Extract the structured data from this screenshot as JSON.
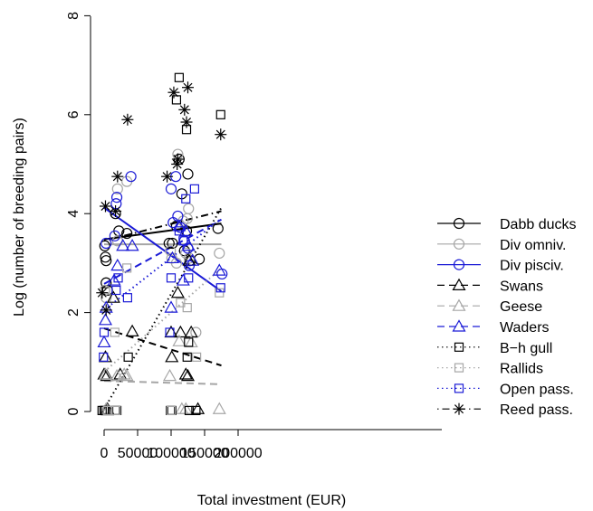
{
  "chart_data": {
    "type": "scatter",
    "xlabel": "Total investment (EUR)",
    "ylabel": "Log (number of breeding pairs)",
    "xlim": [
      -10000,
      200000
    ],
    "ylim": [
      0,
      8
    ],
    "x_ticks": [
      0,
      50000,
      100000,
      150000,
      200000
    ],
    "x_tick_labels": [
      "0",
      "50000",
      "100000",
      "150000",
      "200000"
    ],
    "y_ticks": [
      0,
      2,
      4,
      6,
      8
    ],
    "y_tick_labels": [
      "0",
      "2",
      "4",
      "6",
      "8"
    ],
    "legend_position": "right",
    "colors": {
      "black": "#000000",
      "grey": "#a6a6a6",
      "blue": "#1a1ad6"
    },
    "series": [
      {
        "name": "Dabb ducks",
        "marker": "circle",
        "color": "black",
        "line": "solid",
        "fit": [
          [
            0,
            3.48
          ],
          [
            175000,
            3.8
          ]
        ],
        "points": [
          [
            1000,
            3.35
          ],
          [
            2000,
            3.12
          ],
          [
            3000,
            3.05
          ],
          [
            3000,
            2.6
          ],
          [
            5000,
            2.45
          ],
          [
            17000,
            4.0
          ],
          [
            22000,
            3.65
          ],
          [
            34000,
            3.6
          ],
          [
            97000,
            3.4
          ],
          [
            102000,
            3.4
          ],
          [
            108000,
            3.75
          ],
          [
            112000,
            5.1
          ],
          [
            116000,
            4.4
          ],
          [
            120000,
            3.25
          ],
          [
            123000,
            3.65
          ],
          [
            125000,
            4.8
          ],
          [
            128000,
            3.05
          ],
          [
            142000,
            3.08
          ],
          [
            170000,
            3.7
          ]
        ]
      },
      {
        "name": "Div omniv.",
        "marker": "circle",
        "color": "grey",
        "line": "solid",
        "fit": [
          [
            0,
            3.38
          ],
          [
            175000,
            3.38
          ]
        ],
        "points": [
          [
            1000,
            2.45
          ],
          [
            3000,
            2.3
          ],
          [
            20000,
            3.45
          ],
          [
            20000,
            4.5
          ],
          [
            34000,
            4.65
          ],
          [
            99000,
            3.25
          ],
          [
            101000,
            3.1
          ],
          [
            108000,
            3.0
          ],
          [
            110000,
            5.2
          ],
          [
            118000,
            3.85
          ],
          [
            122000,
            3.2
          ],
          [
            124000,
            3.9
          ],
          [
            126000,
            4.1
          ],
          [
            127000,
            3.1
          ],
          [
            137000,
            1.6
          ],
          [
            172000,
            3.2
          ]
        ]
      },
      {
        "name": "Div pisciv.",
        "marker": "circle",
        "color": "blue",
        "line": "solid",
        "fit": [
          [
            0,
            4.12
          ],
          [
            175000,
            2.43
          ]
        ],
        "points": [
          [
            3000,
            3.4
          ],
          [
            16000,
            3.55
          ],
          [
            18000,
            4.2
          ],
          [
            19000,
            4.33
          ],
          [
            40000,
            4.75
          ],
          [
            100000,
            4.5
          ],
          [
            103000,
            3.82
          ],
          [
            107000,
            4.75
          ],
          [
            110000,
            3.95
          ],
          [
            114000,
            3.72
          ],
          [
            120000,
            3.45
          ],
          [
            125000,
            3.3
          ],
          [
            127000,
            2.95
          ],
          [
            176000,
            2.78
          ]
        ]
      },
      {
        "name": "Swans",
        "marker": "triangle",
        "color": "black",
        "line": "dashed",
        "fit": [
          [
            0,
            1.68
          ],
          [
            175000,
            0.93
          ]
        ],
        "points": [
          [
            0,
            0.75
          ],
          [
            2000,
            1.1
          ],
          [
            4000,
            0.72
          ],
          [
            5000,
            0.05
          ],
          [
            14000,
            2.3
          ],
          [
            24000,
            0.75
          ],
          [
            42000,
            1.62
          ],
          [
            100000,
            1.6
          ],
          [
            101000,
            1.1
          ],
          [
            110000,
            2.4
          ],
          [
            114000,
            1.6
          ],
          [
            122000,
            0.75
          ],
          [
            125000,
            0.72
          ],
          [
            127000,
            3.05
          ],
          [
            130000,
            1.6
          ],
          [
            140000,
            0.05
          ]
        ]
      },
      {
        "name": "Geese",
        "marker": "triangle",
        "color": "grey",
        "line": "dashed",
        "fit": [
          [
            0,
            0.62
          ],
          [
            175000,
            0.55
          ]
        ],
        "points": [
          [
            2000,
            0.75
          ],
          [
            3000,
            0.05
          ],
          [
            5000,
            0.02
          ],
          [
            19000,
            0.72
          ],
          [
            30000,
            0.75
          ],
          [
            34000,
            0.72
          ],
          [
            98000,
            0.72
          ],
          [
            112000,
            1.42
          ],
          [
            116000,
            0.05
          ],
          [
            122000,
            0.05
          ],
          [
            130000,
            1.4
          ],
          [
            172000,
            0.05
          ]
        ]
      },
      {
        "name": "Waders",
        "marker": "triangle",
        "color": "blue",
        "line": "dashed",
        "fit": [
          [
            0,
            2.58
          ],
          [
            175000,
            3.88
          ]
        ],
        "points": [
          [
            0,
            1.4
          ],
          [
            2000,
            1.85
          ],
          [
            3000,
            2.1
          ],
          [
            15000,
            2.65
          ],
          [
            20000,
            2.95
          ],
          [
            28000,
            3.35
          ],
          [
            42000,
            3.35
          ],
          [
            100000,
            2.1
          ],
          [
            102000,
            3.1
          ],
          [
            112000,
            3.75
          ],
          [
            118000,
            2.65
          ],
          [
            122000,
            3.65
          ],
          [
            126000,
            3.35
          ],
          [
            132000,
            3.05
          ],
          [
            172000,
            2.85
          ]
        ]
      },
      {
        "name": "B−h gull",
        "marker": "square",
        "color": "black",
        "line": "dotted",
        "fit": [
          [
            0,
            0.05
          ],
          [
            175000,
            4.12
          ]
        ],
        "points": [
          [
            -3000,
            0.02
          ],
          [
            0,
            0.02
          ],
          [
            2000,
            0.02
          ],
          [
            5000,
            0.02
          ],
          [
            17000,
            0.02
          ],
          [
            19000,
            0.02
          ],
          [
            36000,
            1.1
          ],
          [
            99000,
            0.02
          ],
          [
            101000,
            0.02
          ],
          [
            108000,
            6.3
          ],
          [
            112000,
            6.75
          ],
          [
            123000,
            5.7
          ],
          [
            124000,
            1.1
          ],
          [
            126000,
            1.4
          ],
          [
            127000,
            0.02
          ],
          [
            137000,
            0.02
          ],
          [
            174000,
            6.0
          ]
        ]
      },
      {
        "name": "Rallids",
        "marker": "square",
        "color": "grey",
        "line": "dotted",
        "fit": [
          [
            0,
            0.8
          ],
          [
            175000,
            2.9
          ]
        ],
        "points": [
          [
            5000,
            0.02
          ],
          [
            16000,
            1.6
          ],
          [
            18000,
            0.02
          ],
          [
            34000,
            2.9
          ],
          [
            100000,
            0.02
          ],
          [
            114000,
            2.2
          ],
          [
            124000,
            2.1
          ],
          [
            138000,
            1.1
          ],
          [
            172000,
            2.4
          ]
        ]
      },
      {
        "name": "Open pass.",
        "marker": "square",
        "color": "blue",
        "line": "dotted",
        "fit": [
          [
            0,
            2.05
          ],
          [
            175000,
            3.9
          ]
        ],
        "points": [
          [
            -1000,
            1.1
          ],
          [
            0,
            1.6
          ],
          [
            18000,
            2.45
          ],
          [
            21000,
            2.7
          ],
          [
            35000,
            2.3
          ],
          [
            98000,
            1.6
          ],
          [
            100000,
            2.7
          ],
          [
            112000,
            3.65
          ],
          [
            118000,
            3.45
          ],
          [
            122000,
            4.3
          ],
          [
            126000,
            2.7
          ],
          [
            135000,
            4.5
          ],
          [
            174000,
            2.5
          ]
        ]
      },
      {
        "name": "Reed pass.",
        "marker": "asterisk",
        "color": "black",
        "line": "dotdash",
        "fit": [
          [
            0,
            3.45
          ],
          [
            175000,
            4.05
          ]
        ],
        "points": [
          [
            -3000,
            2.4
          ],
          [
            2000,
            4.15
          ],
          [
            3000,
            2.05
          ],
          [
            17000,
            4.05
          ],
          [
            20000,
            4.75
          ],
          [
            35000,
            5.9
          ],
          [
            94000,
            4.75
          ],
          [
            104000,
            6.45
          ],
          [
            109000,
            5.0
          ],
          [
            110000,
            5.1
          ],
          [
            120000,
            6.1
          ],
          [
            123000,
            5.85
          ],
          [
            125000,
            6.55
          ],
          [
            174000,
            5.6
          ]
        ]
      }
    ]
  }
}
